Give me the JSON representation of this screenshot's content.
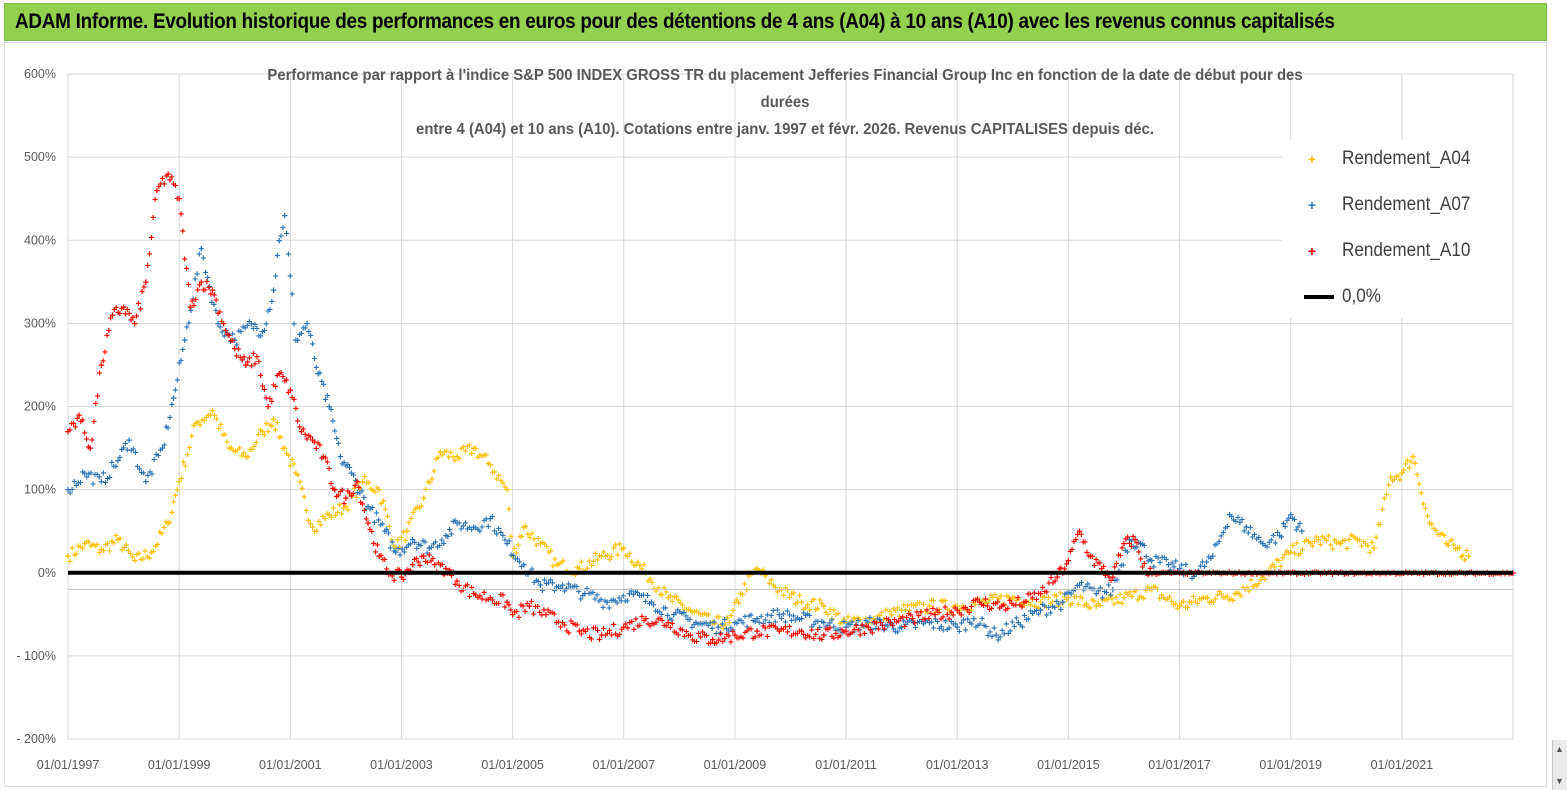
{
  "banner": {
    "title": "ADAM Informe. Evolution historique des performances en euros pour des détentions de 4 ans (A04) à 10 ans (A10) avec les revenus connus capitalisés"
  },
  "chart_data": {
    "type": "scatter",
    "title_lines": [
      "Performance par rapport à l'indice S&P 500 INDEX GROSS TR  du placement Jefferies Financial Group Inc en fonction de la date de début pour des",
      "durées",
      "entre 4 (A04) et 10 ans (A10). Cotations entre janv. 1997 et févr. 2026. Revenus CAPITALISES depuis déc."
    ],
    "y_tick_labels": [
      "600%",
      "500%",
      "400%",
      "300%",
      "200%",
      "100%",
      "0%",
      "- 100%",
      "- 200%"
    ],
    "ylim": [
      -200,
      600
    ],
    "x_tick_labels": [
      "01/01/1997",
      "01/01/1999",
      "01/01/2001",
      "01/01/2003",
      "01/01/2005",
      "01/01/2007",
      "01/01/2009",
      "01/01/2011",
      "01/01/2013",
      "01/01/2015",
      "01/01/2017",
      "01/01/2019",
      "01/01/2021"
    ],
    "xlim": [
      1997.0,
      2023.0
    ],
    "grid": true,
    "legend_position": "top-right",
    "colors": {
      "A04": "#ffc000",
      "A07": "#2e75b6",
      "A10": "#ff0000",
      "zero": "#000000"
    },
    "series": [
      {
        "name": "Rendement_A04",
        "x": [
          1997.0,
          1997.3,
          1997.6,
          1997.9,
          1998.2,
          1998.5,
          1998.8,
          1999.0,
          1999.3,
          1999.6,
          1999.9,
          2000.2,
          2000.5,
          2000.7,
          2000.9,
          2001.1,
          2001.4,
          2001.7,
          2002.0,
          2002.3,
          2002.6,
          2002.9,
          2003.1,
          2003.4,
          2003.7,
          2004.0,
          2004.3,
          2004.6,
          2004.9,
          2005.0,
          2005.2,
          2005.5,
          2005.8,
          2006.2,
          2006.6,
          2007.0,
          2007.4,
          2007.8,
          2008.2,
          2008.6,
          2008.9,
          2009.1,
          2009.4,
          2009.8,
          2010.2,
          2010.6,
          2011.0,
          2011.5,
          2012.0,
          2012.5,
          2013.0,
          2013.5,
          2014.0,
          2014.5,
          2015.0,
          2015.5,
          2016.0,
          2016.5,
          2017.0,
          2017.5,
          2018.0,
          2018.5,
          2019.0,
          2019.5,
          2019.9,
          2020.2,
          2020.5,
          2020.8,
          2021.0,
          2021.2,
          2021.5,
          2021.8,
          2022.0,
          2022.2
        ],
        "y": [
          20,
          35,
          28,
          40,
          15,
          25,
          60,
          110,
          180,
          195,
          150,
          140,
          170,
          185,
          150,
          120,
          55,
          70,
          80,
          110,
          100,
          30,
          50,
          90,
          145,
          140,
          150,
          130,
          100,
          20,
          55,
          35,
          10,
          5,
          20,
          30,
          0,
          -30,
          -45,
          -60,
          -60,
          -25,
          5,
          -20,
          -35,
          -40,
          -60,
          -55,
          -45,
          -40,
          -40,
          -35,
          -30,
          -35,
          -30,
          -40,
          -30,
          -20,
          -40,
          -30,
          -25,
          -5,
          25,
          40,
          35,
          40,
          30,
          115,
          120,
          140,
          60,
          35,
          30,
          20
        ]
      },
      {
        "name": "Rendement_A07",
        "x": [
          1997.0,
          1997.3,
          1997.6,
          1997.9,
          1998.1,
          1998.4,
          1998.7,
          1998.9,
          1999.1,
          1999.4,
          1999.7,
          2000.0,
          2000.3,
          2000.5,
          2000.7,
          2000.8,
          2000.9,
          2001.1,
          2001.3,
          2001.5,
          2001.7,
          2001.9,
          2002.1,
          2002.4,
          2002.7,
          2002.9,
          2003.2,
          2003.5,
          2003.8,
          2004.0,
          2004.3,
          2004.6,
          2004.9,
          2005.2,
          2005.5,
          2005.9,
          2006.3,
          2006.7,
          2007.1,
          2007.5,
          2007.9,
          2008.3,
          2008.7,
          2009.0,
          2009.4,
          2009.8,
          2010.2,
          2010.6,
          2011.0,
          2011.5,
          2012.0,
          2012.5,
          2013.0,
          2013.3,
          2013.7,
          2014.1,
          2014.5,
          2014.9,
          2015.2,
          2015.5,
          2015.8,
          2016.1,
          2016.3,
          2016.5,
          2016.8,
          2017.0,
          2017.3,
          2017.6,
          2017.9,
          2018.2,
          2018.5,
          2018.8,
          2019.0,
          2019.2
        ],
        "y": [
          100,
          120,
          110,
          135,
          160,
          110,
          150,
          210,
          280,
          390,
          300,
          280,
          300,
          290,
          340,
          400,
          430,
          280,
          300,
          240,
          200,
          140,
          120,
          80,
          50,
          25,
          40,
          30,
          45,
          60,
          55,
          65,
          35,
          10,
          -15,
          -15,
          -25,
          -35,
          -25,
          -35,
          -50,
          -60,
          -65,
          -60,
          -55,
          -50,
          -55,
          -60,
          -65,
          -60,
          -65,
          -60,
          -65,
          -55,
          -75,
          -60,
          -45,
          -35,
          -15,
          -25,
          -20,
          40,
          35,
          15,
          10,
          5,
          0,
          20,
          70,
          55,
          35,
          45,
          70,
          50
        ]
      },
      {
        "name": "Rendement_A10",
        "x": [
          1997.0,
          1997.2,
          1997.4,
          1997.6,
          1997.8,
          1998.0,
          1998.2,
          1998.4,
          1998.6,
          1998.8,
          1999.0,
          1999.2,
          1999.4,
          1999.6,
          1999.8,
          2000.0,
          2000.2,
          2000.4,
          2000.6,
          2000.8,
          2001.0,
          2001.2,
          2001.4,
          2001.6,
          2001.8,
          2002.0,
          2002.2,
          2002.4,
          2002.6,
          2002.8,
          2003.0,
          2003.2,
          2003.4,
          2003.6,
          2003.8,
          2004.0,
          2004.3,
          2004.6,
          2004.9,
          2005.0,
          2005.3,
          2005.6,
          2005.9,
          2006.2,
          2006.6,
          2007.0,
          2007.4,
          2007.8,
          2008.2,
          2008.6,
          2009.0,
          2009.4,
          2009.8,
          2010.2,
          2010.6,
          2011.0,
          2011.4,
          2011.8,
          2012.2,
          2012.6,
          2013.0,
          2013.4,
          2013.8,
          2014.2,
          2014.5,
          2014.8,
          2015.0,
          2015.2,
          2015.4,
          2015.6,
          2015.8,
          2016.0,
          2016.2,
          2016.4,
          2017.0,
          2018.0,
          2019.0,
          2020.0,
          2021.0,
          2022.0,
          2023.0
        ],
        "y": [
          170,
          190,
          150,
          250,
          310,
          320,
          300,
          350,
          460,
          480,
          450,
          320,
          350,
          340,
          300,
          270,
          250,
          260,
          200,
          240,
          220,
          170,
          160,
          140,
          100,
          90,
          110,
          60,
          20,
          0,
          -5,
          10,
          20,
          10,
          5,
          -10,
          -25,
          -30,
          -35,
          -50,
          -40,
          -50,
          -60,
          -70,
          -75,
          -65,
          -55,
          -60,
          -75,
          -80,
          -75,
          -70,
          -70,
          -70,
          -75,
          -70,
          -65,
          -60,
          -55,
          -50,
          -45,
          -35,
          -40,
          -35,
          -25,
          -5,
          15,
          50,
          20,
          5,
          -5,
          35,
          40,
          0,
          0,
          0,
          0,
          0,
          0,
          0,
          0
        ]
      }
    ],
    "legend": [
      "Rendement_A04",
      "Rendement_A07",
      "Rendement_A10",
      "0,0%"
    ]
  }
}
